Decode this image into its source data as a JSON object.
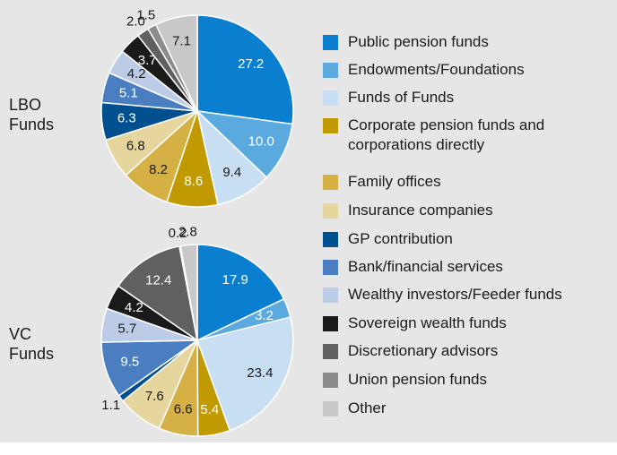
{
  "chart_data": [
    {
      "type": "pie",
      "title": "LBO Funds",
      "categories": [
        "Public pension funds",
        "Endowments/Foundations",
        "Funds of Funds",
        "Corporate pension funds and corporations directly",
        "Family offices",
        "Insurance companies",
        "GP contribution",
        "Bank/financial services",
        "Wealthy investors/Feeder funds",
        "Sovereign wealth funds",
        "Discretionary advisors",
        "Union pension funds",
        "Other"
      ],
      "colors": [
        "#0a7fcf",
        "#5aaae0",
        "#c8def3",
        "#c09a00",
        "#d4b045",
        "#e6d59c",
        "#00508f",
        "#4a7ec0",
        "#bccbe6",
        "#1a1a1a",
        "#606060",
        "#8c8c8c",
        "#c8c8c8"
      ],
      "values": [
        27.2,
        10.0,
        9.4,
        8.6,
        8.2,
        6.8,
        6.3,
        5.1,
        4.2,
        3.7,
        2.0,
        1.5,
        7.1
      ],
      "value_labels": [
        "27.2",
        "10.0",
        "9.4",
        "8.6",
        "8.2",
        "6.8",
        "6.3",
        "5.1",
        "4.2",
        "3.7",
        "2.0",
        "1.5",
        "7.1"
      ]
    },
    {
      "type": "pie",
      "title": "VC Funds",
      "values": [
        17.9,
        3.2,
        23.4,
        5.4,
        6.6,
        7.6,
        1.1,
        9.5,
        5.7,
        4.2,
        12.4,
        0.2,
        2.8
      ]
    }
  ]
}
